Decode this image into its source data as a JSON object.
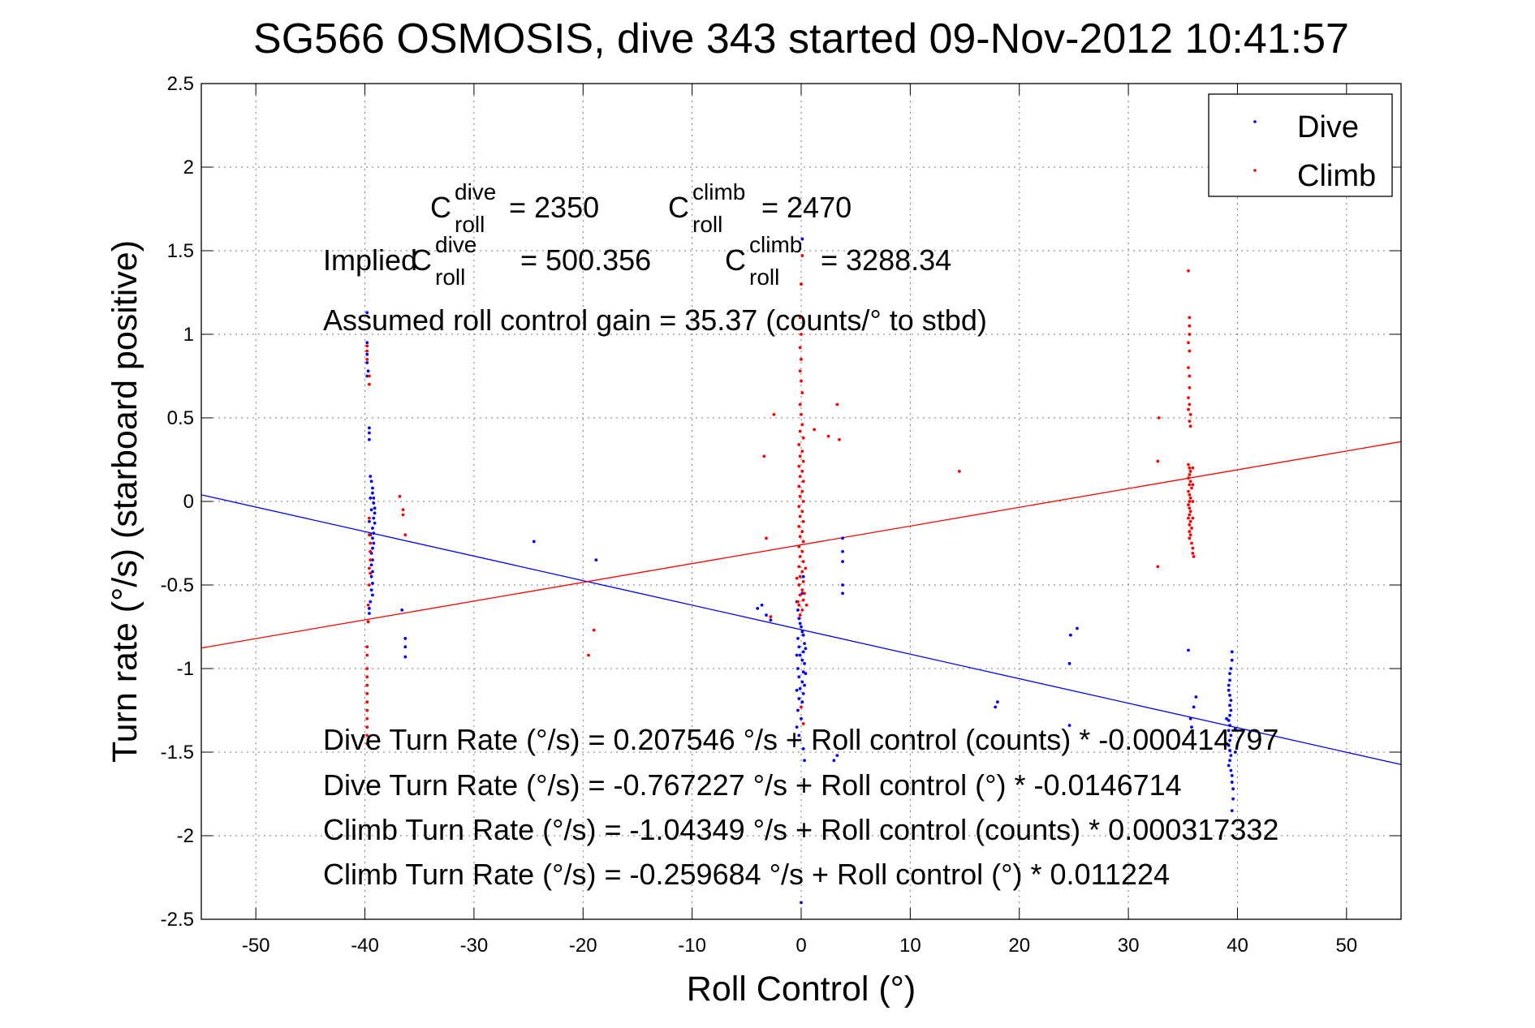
{
  "chart_data": {
    "type": "scatter",
    "title": "SG566 OSMOSIS, dive 343 started 09-Nov-2012 10:41:57",
    "xlabel": "Roll Control (°)",
    "ylabel": "Turn rate (°/s)  (starboard positive)",
    "xlim": [
      -55,
      55
    ],
    "ylim": [
      -2.5,
      2.5
    ],
    "xticks": [
      -50,
      -40,
      -30,
      -20,
      -10,
      0,
      10,
      20,
      30,
      40,
      50
    ],
    "yticks": [
      -2.5,
      -2,
      -1.5,
      -1,
      -0.5,
      0,
      0.5,
      1,
      1.5,
      2,
      2.5
    ],
    "xtick_labels": [
      "-50",
      "-40",
      "-30",
      "-20",
      "-10",
      "0",
      "10",
      "20",
      "30",
      "40",
      "50"
    ],
    "ytick_labels": [
      "-2.5",
      "-2",
      "-1.5",
      "-1",
      "-0.5",
      "0",
      "0.5",
      "1",
      "1.5",
      "2",
      "2.5"
    ],
    "grid": true,
    "legend_position": "top-right",
    "series": [
      {
        "name": "Dive",
        "color": "#0000ff",
        "points": [
          [
            -39.8,
            1.13
          ],
          [
            -39.8,
            0.95
          ],
          [
            -39.8,
            0.88
          ],
          [
            -39.8,
            0.83
          ],
          [
            -39.7,
            0.78
          ],
          [
            -39.8,
            0.75
          ],
          [
            -39.6,
            0.44
          ],
          [
            -39.6,
            0.41
          ],
          [
            -39.6,
            0.37
          ],
          [
            -39.5,
            0.15
          ],
          [
            -39.4,
            0.12
          ],
          [
            -39.3,
            0.08
          ],
          [
            -39.3,
            0.05
          ],
          [
            -39.2,
            0.02
          ],
          [
            -39.2,
            -0.01
          ],
          [
            -39.1,
            -0.04
          ],
          [
            -39.1,
            -0.07
          ],
          [
            -39.2,
            -0.1
          ],
          [
            -39.1,
            -0.13
          ],
          [
            -39.3,
            -0.16
          ],
          [
            -39.2,
            -0.19
          ],
          [
            -39.3,
            -0.22
          ],
          [
            -39.2,
            -0.25
          ],
          [
            -39.3,
            -0.28
          ],
          [
            -39.4,
            -0.31
          ],
          [
            -39.3,
            -0.35
          ],
          [
            -39.4,
            -0.38
          ],
          [
            -39.3,
            -0.42
          ],
          [
            -39.4,
            -0.45
          ],
          [
            -39.3,
            -0.49
          ],
          [
            -39.4,
            -0.53
          ],
          [
            -39.3,
            -0.56
          ],
          [
            -39.5,
            -0.3
          ],
          [
            -39.5,
            -0.6
          ],
          [
            -39.6,
            -0.64
          ],
          [
            -39.6,
            -0.67
          ],
          [
            -39.7,
            -0.72
          ],
          [
            -39.5,
            0.02
          ],
          [
            -39.4,
            -0.05
          ],
          [
            -39.6,
            -0.12
          ],
          [
            -39.5,
            -0.2
          ],
          [
            -36.6,
            -0.65
          ],
          [
            -36.3,
            -0.82
          ],
          [
            -36.3,
            -0.87
          ],
          [
            -36.3,
            -0.93
          ],
          [
            -24.5,
            -0.24
          ],
          [
            -18.8,
            -0.35
          ],
          [
            -4.0,
            -0.64
          ],
          [
            -3.6,
            -0.62
          ],
          [
            -3.2,
            -0.68
          ],
          [
            -2.8,
            -0.71
          ],
          [
            -0.4,
            -0.6
          ],
          [
            -0.3,
            -0.65
          ],
          [
            -0.2,
            -0.7
          ],
          [
            -0.1,
            -0.73
          ],
          [
            0.0,
            -0.75
          ],
          [
            0.1,
            -0.78
          ],
          [
            0.2,
            -0.8
          ],
          [
            -0.3,
            -0.82
          ],
          [
            0.3,
            -0.85
          ],
          [
            -0.2,
            -0.87
          ],
          [
            0.2,
            -0.9
          ],
          [
            -0.1,
            -0.92
          ],
          [
            0.1,
            -0.95
          ],
          [
            0.3,
            -0.97
          ],
          [
            -0.3,
            -1.0
          ],
          [
            0.2,
            -1.02
          ],
          [
            -0.2,
            -1.05
          ],
          [
            0.1,
            -1.08
          ],
          [
            0.3,
            -1.1
          ],
          [
            -0.1,
            -1.12
          ],
          [
            0.2,
            -1.15
          ],
          [
            -0.2,
            -1.18
          ],
          [
            0.1,
            -1.2
          ],
          [
            -0.3,
            -1.25
          ],
          [
            0.0,
            -1.3
          ],
          [
            -0.4,
            -1.35
          ],
          [
            -0.2,
            -1.4
          ],
          [
            0.2,
            -1.48
          ],
          [
            0.3,
            -1.55
          ],
          [
            0.1,
            -0.55
          ],
          [
            -0.2,
            -0.5
          ],
          [
            0.2,
            -0.45
          ],
          [
            0.4,
            -0.88
          ],
          [
            -0.4,
            -0.92
          ],
          [
            0.4,
            -1.03
          ],
          [
            -0.4,
            -1.13
          ],
          [
            0.1,
            1.57
          ],
          [
            0.0,
            -2.4
          ],
          [
            3.0,
            -1.55
          ],
          [
            3.3,
            -1.52
          ],
          [
            3.8,
            -0.22
          ],
          [
            3.8,
            -0.3
          ],
          [
            3.8,
            -0.36
          ],
          [
            3.8,
            -0.5
          ],
          [
            3.8,
            -0.55
          ],
          [
            18.0,
            -1.2
          ],
          [
            17.8,
            -1.23
          ],
          [
            24.7,
            -0.8
          ],
          [
            25.3,
            -0.76
          ],
          [
            24.6,
            -0.97
          ],
          [
            24.6,
            -1.34
          ],
          [
            35.5,
            -0.89
          ],
          [
            36.2,
            -1.17
          ],
          [
            36.0,
            -1.23
          ],
          [
            35.7,
            -1.3
          ],
          [
            35.8,
            -1.35
          ],
          [
            39.5,
            -0.9
          ],
          [
            39.5,
            -0.95
          ],
          [
            39.4,
            -1.0
          ],
          [
            39.3,
            -1.03
          ],
          [
            39.3,
            -1.07
          ],
          [
            39.2,
            -1.1
          ],
          [
            39.2,
            -1.13
          ],
          [
            39.3,
            -1.16
          ],
          [
            39.4,
            -1.19
          ],
          [
            39.3,
            -1.22
          ],
          [
            39.4,
            -1.25
          ],
          [
            39.3,
            -1.28
          ],
          [
            39.2,
            -1.31
          ],
          [
            39.3,
            -1.34
          ],
          [
            39.2,
            -1.37
          ],
          [
            39.4,
            -1.4
          ],
          [
            39.3,
            -1.43
          ],
          [
            39.2,
            -1.46
          ],
          [
            39.3,
            -1.49
          ],
          [
            39.4,
            -1.52
          ],
          [
            39.3,
            -1.55
          ],
          [
            39.2,
            -1.58
          ],
          [
            39.4,
            -1.61
          ],
          [
            39.5,
            -1.64
          ],
          [
            39.5,
            -1.68
          ],
          [
            39.6,
            -1.72
          ],
          [
            39.6,
            -1.78
          ],
          [
            39.5,
            -1.85
          ],
          [
            39.0,
            -1.3
          ],
          [
            39.0,
            -1.45
          ],
          [
            39.8,
            -1.36
          ],
          [
            39.8,
            -1.5
          ]
        ]
      },
      {
        "name": "Climb",
        "color": "#ff0000",
        "points": [
          [
            -39.8,
            0.93
          ],
          [
            -39.8,
            0.9
          ],
          [
            -39.8,
            0.85
          ],
          [
            -39.6,
            0.75
          ],
          [
            -39.6,
            0.7
          ],
          [
            -39.6,
            -0.1
          ],
          [
            -39.6,
            -0.2
          ],
          [
            -39.5,
            -0.25
          ],
          [
            -39.5,
            -0.3
          ],
          [
            -39.5,
            -0.35
          ],
          [
            -39.6,
            -0.4
          ],
          [
            -39.5,
            -0.43
          ],
          [
            -39.6,
            -0.5
          ],
          [
            -39.7,
            -0.62
          ],
          [
            -39.7,
            -0.72
          ],
          [
            -39.8,
            -0.87
          ],
          [
            -39.8,
            -0.92
          ],
          [
            -39.8,
            -1.0
          ],
          [
            -39.8,
            -1.05
          ],
          [
            -39.8,
            -1.1
          ],
          [
            -39.8,
            -1.15
          ],
          [
            -39.8,
            -1.2
          ],
          [
            -39.8,
            -1.25
          ],
          [
            -39.8,
            -1.3
          ],
          [
            -39.8,
            -1.35
          ],
          [
            -39.8,
            -1.4
          ],
          [
            -39.8,
            -1.45
          ],
          [
            -36.8,
            0.03
          ],
          [
            -36.5,
            -0.05
          ],
          [
            -36.5,
            -0.08
          ],
          [
            -36.3,
            -0.2
          ],
          [
            -19.0,
            -0.77
          ],
          [
            -19.5,
            -0.92
          ],
          [
            -3.4,
            0.27
          ],
          [
            -3.2,
            -0.22
          ],
          [
            -2.8,
            -0.69
          ],
          [
            -2.5,
            0.52
          ],
          [
            0.1,
            1.47
          ],
          [
            0.0,
            1.3
          ],
          [
            -0.1,
            1.1
          ],
          [
            0.0,
            1.0
          ],
          [
            -0.1,
            0.92
          ],
          [
            0.0,
            0.85
          ],
          [
            -0.1,
            0.78
          ],
          [
            0.0,
            0.72
          ],
          [
            0.1,
            0.65
          ],
          [
            -0.1,
            0.58
          ],
          [
            0.0,
            0.52
          ],
          [
            0.1,
            0.46
          ],
          [
            -0.1,
            0.42
          ],
          [
            0.2,
            0.38
          ],
          [
            -0.2,
            0.34
          ],
          [
            0.1,
            0.3
          ],
          [
            -0.1,
            0.27
          ],
          [
            0.2,
            0.24
          ],
          [
            -0.2,
            0.21
          ],
          [
            0.1,
            0.18
          ],
          [
            -0.1,
            0.15
          ],
          [
            0.2,
            0.12
          ],
          [
            -0.2,
            0.09
          ],
          [
            0.1,
            0.06
          ],
          [
            -0.1,
            0.03
          ],
          [
            0.2,
            0.0
          ],
          [
            -0.2,
            -0.03
          ],
          [
            0.1,
            -0.06
          ],
          [
            -0.1,
            -0.09
          ],
          [
            0.2,
            -0.12
          ],
          [
            -0.2,
            -0.15
          ],
          [
            0.1,
            -0.18
          ],
          [
            -0.1,
            -0.21
          ],
          [
            0.2,
            -0.24
          ],
          [
            -0.2,
            -0.27
          ],
          [
            0.1,
            -0.3
          ],
          [
            -0.1,
            -0.33
          ],
          [
            0.2,
            -0.36
          ],
          [
            -0.2,
            -0.39
          ],
          [
            0.1,
            -0.42
          ],
          [
            -0.1,
            -0.45
          ],
          [
            0.2,
            -0.48
          ],
          [
            -0.2,
            -0.5
          ],
          [
            0.1,
            -0.53
          ],
          [
            -0.1,
            -0.56
          ],
          [
            0.2,
            -0.59
          ],
          [
            -0.2,
            -0.62
          ],
          [
            0.1,
            -0.65
          ],
          [
            -0.1,
            -0.68
          ],
          [
            0.3,
            -0.55
          ],
          [
            -0.3,
            -0.6
          ],
          [
            0.0,
            -1.23
          ],
          [
            0.2,
            -1.33
          ],
          [
            0.4,
            -0.4
          ],
          [
            -0.4,
            -0.46
          ],
          [
            0.5,
            -0.62
          ],
          [
            1.2,
            0.43
          ],
          [
            2.5,
            0.39
          ],
          [
            3.3,
            0.58
          ],
          [
            3.5,
            0.37
          ],
          [
            14.5,
            0.18
          ],
          [
            32.8,
            0.5
          ],
          [
            32.7,
            0.24
          ],
          [
            32.7,
            -0.39
          ],
          [
            35.5,
            1.38
          ],
          [
            35.6,
            1.1
          ],
          [
            35.6,
            1.05
          ],
          [
            35.6,
            1.0
          ],
          [
            35.5,
            0.95
          ],
          [
            35.6,
            0.9
          ],
          [
            35.5,
            0.8
          ],
          [
            35.6,
            0.75
          ],
          [
            35.6,
            0.68
          ],
          [
            35.5,
            0.62
          ],
          [
            35.6,
            0.58
          ],
          [
            35.5,
            0.55
          ],
          [
            35.7,
            0.52
          ],
          [
            35.6,
            0.48
          ],
          [
            35.7,
            0.45
          ],
          [
            35.5,
            0.22
          ],
          [
            35.6,
            0.2
          ],
          [
            35.7,
            0.18
          ],
          [
            35.6,
            0.16
          ],
          [
            35.5,
            0.14
          ],
          [
            35.7,
            0.12
          ],
          [
            35.6,
            0.1
          ],
          [
            35.8,
            0.08
          ],
          [
            35.5,
            0.06
          ],
          [
            35.6,
            0.04
          ],
          [
            35.7,
            0.02
          ],
          [
            35.6,
            0.0
          ],
          [
            35.5,
            -0.02
          ],
          [
            35.6,
            -0.04
          ],
          [
            35.7,
            -0.06
          ],
          [
            35.6,
            -0.08
          ],
          [
            35.5,
            -0.1
          ],
          [
            35.7,
            -0.12
          ],
          [
            35.6,
            -0.14
          ],
          [
            35.8,
            -0.16
          ],
          [
            35.6,
            -0.18
          ],
          [
            35.7,
            -0.2
          ],
          [
            35.6,
            -0.22
          ],
          [
            35.8,
            -0.25
          ],
          [
            35.9,
            -0.28
          ],
          [
            35.9,
            -0.31
          ],
          [
            36.0,
            -0.33
          ],
          [
            35.9,
            0.2
          ],
          [
            35.9,
            0.1
          ],
          [
            35.9,
            0.0
          ],
          [
            35.9,
            -0.1
          ]
        ]
      }
    ],
    "fit_lines": [
      {
        "name": "Dive fit",
        "color": "#0000ff",
        "intercept": -0.767227,
        "slope": -0.0146714
      },
      {
        "name": "Climb fit",
        "color": "#ff0000",
        "intercept": -0.259684,
        "slope": 0.011224
      }
    ]
  },
  "annotations": {
    "c_roll_symbol": "C",
    "roll_sub": "roll",
    "dive_sup": "dive",
    "climb_sup": "climb",
    "c_dive_value": "= 2350",
    "c_climb_value": "= 2470",
    "implied_prefix": "Implied ",
    "implied_dive_value": "= 500.356",
    "implied_climb_value": "= 3288.34",
    "gain": "Assumed roll control gain = 35.37 (counts/° to stbd)",
    "eq1": "Dive Turn Rate (°/s) = 0.207546 °/s + Roll control (counts) * -0.000414797",
    "eq2": "Dive Turn Rate (°/s) = -0.767227 °/s + Roll control (°) * -0.0146714",
    "eq3": "Climb Turn Rate (°/s) = -1.04349 °/s + Roll control (counts) * 0.000317332",
    "eq4": "Climb Turn Rate (°/s) = -0.259684 °/s + Roll control (°) * 0.011224"
  }
}
